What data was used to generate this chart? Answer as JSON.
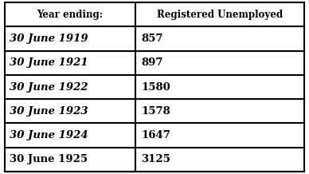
{
  "col1_header": "Year ending:",
  "col2_header": "Registered Unemployed",
  "rows": [
    [
      "30 June 1919",
      "857"
    ],
    [
      "30 June 1921",
      "897"
    ],
    [
      "30 June 1922",
      "1580"
    ],
    [
      "30 June 1923",
      "1578"
    ],
    [
      "30 June 1924",
      "1647"
    ],
    [
      "30 June 1925",
      "3125"
    ]
  ],
  "bg_color": "#ffffff",
  "border_color": "#000000",
  "text_color": "#000000",
  "header_fontsize": 8.5,
  "cell_fontsize": 9.5,
  "fig_width": 3.88,
  "fig_height": 2.18,
  "dpi": 100,
  "col_split": 0.435
}
